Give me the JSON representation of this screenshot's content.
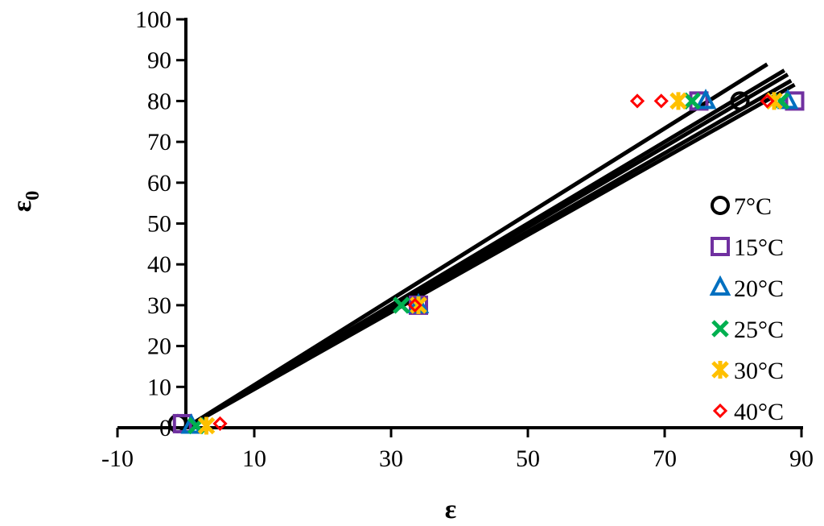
{
  "chart_data": {
    "type": "scatter",
    "title": "",
    "xlabel": "ε",
    "ylabel": "ε",
    "ylabel_subscript": "0",
    "xlim": [
      -10,
      90
    ],
    "ylim": [
      0,
      100
    ],
    "x_ticks": [
      -10,
      10,
      30,
      50,
      70,
      90
    ],
    "y_ticks": [
      0,
      10,
      20,
      30,
      40,
      50,
      60,
      70,
      80,
      90,
      100
    ],
    "x_tick_labels": [
      "-10",
      "10",
      "30",
      "50",
      "70",
      "90"
    ],
    "y_tick_labels": [
      "0",
      "10",
      "20",
      "30",
      "40",
      "50",
      "60",
      "70",
      "80",
      "90",
      "100"
    ],
    "grid": false,
    "legend_position": "right",
    "series": [
      {
        "name": "7°C",
        "marker": "circle",
        "color": "#000000",
        "points": [
          [
            -1.2,
            1
          ],
          [
            81,
            80
          ]
        ]
      },
      {
        "name": "15°C",
        "marker": "square",
        "color": "#7030A0",
        "points": [
          [
            -0.5,
            1
          ],
          [
            34,
            30
          ],
          [
            75,
            80
          ],
          [
            89,
            80
          ]
        ]
      },
      {
        "name": "20°C",
        "marker": "triangle",
        "color": "#0070C0",
        "points": [
          [
            0.8,
            0.5
          ],
          [
            34,
            30
          ],
          [
            76,
            80
          ],
          [
            88,
            80
          ]
        ]
      },
      {
        "name": "25°C",
        "marker": "x",
        "color": "#00B050",
        "points": [
          [
            1.5,
            0.5
          ],
          [
            31.5,
            30
          ],
          [
            74,
            80
          ],
          [
            87,
            80
          ]
        ]
      },
      {
        "name": "30°C",
        "marker": "star",
        "color": "#FFC000",
        "points": [
          [
            3,
            0.5
          ],
          [
            34,
            30
          ],
          [
            72,
            80
          ],
          [
            86,
            80
          ]
        ]
      },
      {
        "name": "40°C",
        "marker": "diamond",
        "color": "#FF0000",
        "points": [
          [
            5,
            1
          ],
          [
            33.5,
            30
          ],
          [
            66,
            80
          ],
          [
            69.5,
            80
          ],
          [
            85,
            80
          ]
        ]
      }
    ],
    "fit_lines": [
      {
        "x": [
          0,
          85
        ],
        "y": [
          0,
          89
        ]
      },
      {
        "x": [
          0,
          87.5
        ],
        "y": [
          0,
          87.5
        ]
      },
      {
        "x": [
          0,
          88
        ],
        "y": [
          0,
          86.5
        ]
      },
      {
        "x": [
          0,
          88.5
        ],
        "y": [
          0,
          85
        ]
      },
      {
        "x": [
          0,
          89
        ],
        "y": [
          0,
          84
        ]
      }
    ]
  }
}
